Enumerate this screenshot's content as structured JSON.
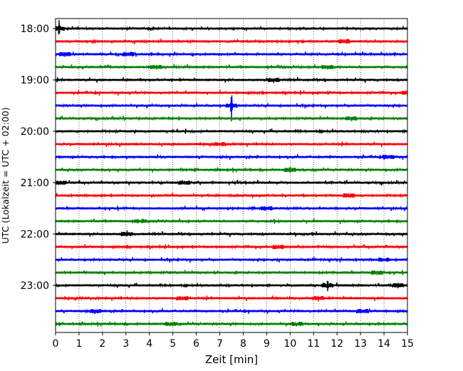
{
  "chart_data": {
    "type": "line",
    "title": "",
    "xlabel": "Zeit  [min]",
    "ylabel": "UTC (Lokalzeit = UTC + 02:00)",
    "xlim": [
      0,
      15
    ],
    "x_ticks": [
      0,
      1,
      2,
      3,
      4,
      5,
      6,
      7,
      8,
      9,
      10,
      11,
      12,
      13,
      14,
      15
    ],
    "x_tick_labels": [
      "0",
      "1",
      "2",
      "3",
      "4",
      "5",
      "6",
      "7",
      "8",
      "9",
      "10",
      "11",
      "12",
      "13",
      "14",
      "15"
    ],
    "y_tick_labels": [
      "18:00",
      "19:00",
      "20:00",
      "21:00",
      "22:00",
      "23:00"
    ],
    "grid": "vertical dotted",
    "trace_colors": [
      "#000000",
      "#ff0000",
      "#0000ff",
      "#008000"
    ],
    "traces": [
      {
        "start": "18:00",
        "color": "#000000",
        "spikes": [
          {
            "t": 0.15,
            "amp": 1.4
          }
        ]
      },
      {
        "start": "18:15",
        "color": "#ff0000",
        "spikes": [
          {
            "t": 12.3,
            "amp": 0.4
          }
        ]
      },
      {
        "start": "18:30",
        "color": "#0000ff",
        "spikes": [
          {
            "t": 0.4,
            "amp": 0.5
          },
          {
            "t": 3.1,
            "amp": 0.4
          }
        ]
      },
      {
        "start": "18:45",
        "color": "#008000",
        "spikes": [
          {
            "t": 4.3,
            "amp": 0.5
          },
          {
            "t": 11.6,
            "amp": 0.5
          }
        ]
      },
      {
        "start": "19:00",
        "color": "#000000",
        "spikes": [
          {
            "t": 9.3,
            "amp": 0.5
          }
        ]
      },
      {
        "start": "19:15",
        "color": "#ff0000",
        "spikes": [
          {
            "t": 15.0,
            "amp": 0.5
          }
        ]
      },
      {
        "start": "19:30",
        "color": "#0000ff",
        "spikes": [
          {
            "t": 7.5,
            "amp": 2.5
          }
        ]
      },
      {
        "start": "19:45",
        "color": "#008000",
        "spikes": [
          {
            "t": 12.6,
            "amp": 0.5
          }
        ]
      },
      {
        "start": "20:00",
        "color": "#000000",
        "spikes": []
      },
      {
        "start": "20:15",
        "color": "#ff0000",
        "spikes": [
          {
            "t": 7.0,
            "amp": 0.3
          }
        ]
      },
      {
        "start": "20:30",
        "color": "#0000ff",
        "spikes": [
          {
            "t": 14.2,
            "amp": 0.4
          }
        ]
      },
      {
        "start": "20:45",
        "color": "#008000",
        "spikes": [
          {
            "t": 10.0,
            "amp": 0.6
          }
        ]
      },
      {
        "start": "21:00",
        "color": "#000000",
        "spikes": [
          {
            "t": 0.2,
            "amp": 0.5
          },
          {
            "t": 5.5,
            "amp": 0.4
          }
        ]
      },
      {
        "start": "21:15",
        "color": "#ff0000",
        "spikes": [
          {
            "t": 12.5,
            "amp": 0.5
          }
        ]
      },
      {
        "start": "21:30",
        "color": "#0000ff",
        "spikes": [
          {
            "t": 9.0,
            "amp": 0.4
          }
        ]
      },
      {
        "start": "21:45",
        "color": "#008000",
        "spikes": [
          {
            "t": 3.6,
            "amp": 0.3
          }
        ]
      },
      {
        "start": "22:00",
        "color": "#000000",
        "spikes": [
          {
            "t": 3.05,
            "amp": 0.7
          }
        ]
      },
      {
        "start": "22:15",
        "color": "#ff0000",
        "spikes": [
          {
            "t": 9.5,
            "amp": 0.4
          }
        ]
      },
      {
        "start": "22:30",
        "color": "#0000ff",
        "spikes": [
          {
            "t": 14.0,
            "amp": 0.3
          }
        ]
      },
      {
        "start": "22:45",
        "color": "#008000",
        "spikes": [
          {
            "t": 13.7,
            "amp": 0.4
          }
        ]
      },
      {
        "start": "23:00",
        "color": "#000000",
        "spikes": [
          {
            "t": 11.6,
            "amp": 1.3
          },
          {
            "t": 14.6,
            "amp": 0.6
          }
        ]
      },
      {
        "start": "23:15",
        "color": "#ff0000",
        "spikes": [
          {
            "t": 5.4,
            "amp": 0.5
          },
          {
            "t": 11.2,
            "amp": 0.5
          }
        ]
      },
      {
        "start": "23:30",
        "color": "#0000ff",
        "spikes": [
          {
            "t": 1.7,
            "amp": 0.4
          },
          {
            "t": 13.1,
            "amp": 0.4
          }
        ]
      },
      {
        "start": "23:45",
        "color": "#008000",
        "spikes": [
          {
            "t": 4.9,
            "amp": 0.4
          },
          {
            "t": 10.3,
            "amp": 0.3
          }
        ]
      }
    ]
  }
}
